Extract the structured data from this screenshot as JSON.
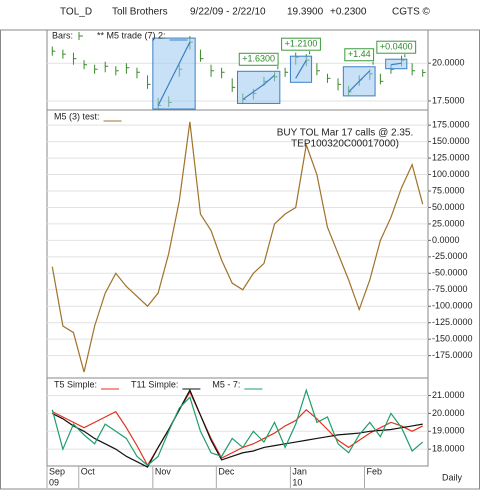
{
  "header": {
    "symbol": "TOL_D",
    "name": "Toll Brothers",
    "range": "9/22/09 - 2/22/10",
    "last": "19.3900",
    "change": "+0.2300",
    "brand": "CGTS ©"
  },
  "chart_data": [
    {
      "type": "ohlc",
      "ylim": [
        16.9,
        22.2
      ],
      "yticks": [
        {
          "value": 20,
          "label": "20.0000"
        },
        {
          "value": 17.5,
          "label": "17.5000"
        }
      ],
      "grid": true,
      "series": [
        {
          "name": "Bars:",
          "color": "#3a8a2a",
          "high": [
            21.1,
            20.9,
            20.7,
            20.2,
            19.9,
            20.1,
            19.8,
            20.0,
            19.7,
            19.2,
            17.7,
            17.8,
            19.9,
            21.8,
            20.9,
            19.9,
            19.7,
            19.0,
            18.0,
            18.3,
            19.1,
            19.4,
            19.7,
            20.7,
            20.6,
            20.0,
            19.3,
            19.0,
            18.5,
            19.2,
            19.6,
            19.3,
            19.9,
            20.5,
            20.0,
            19.6
          ],
          "low": [
            20.5,
            20.3,
            19.9,
            19.6,
            19.3,
            19.4,
            19.2,
            19.3,
            19.0,
            18.3,
            17.0,
            17.1,
            19.1,
            20.9,
            20.1,
            19.1,
            19.0,
            18.1,
            17.3,
            17.6,
            18.5,
            18.8,
            19.1,
            19.9,
            19.8,
            19.2,
            18.7,
            18.2,
            17.8,
            18.5,
            18.9,
            18.6,
            19.3,
            19.8,
            19.2,
            19.1
          ],
          "close": [
            20.8,
            20.6,
            20.3,
            19.9,
            19.6,
            19.8,
            19.5,
            19.7,
            19.4,
            18.6,
            17.2,
            17.4,
            19.6,
            21.4,
            20.3,
            19.5,
            19.4,
            18.4,
            17.6,
            18.0,
            18.8,
            19.1,
            19.4,
            20.4,
            20.2,
            19.5,
            19.0,
            18.6,
            18.1,
            18.9,
            19.3,
            18.8,
            19.6,
            20.2,
            19.5,
            19.39
          ]
        },
        {
          "name": "** M5 trade (7) 2:",
          "color": "#3a7fc8",
          "values": [
            null,
            null,
            null,
            null,
            null,
            null,
            null,
            null,
            null,
            null,
            17.2,
            18.6,
            20.0,
            21.4,
            null,
            null,
            null,
            null,
            17.6,
            18.1,
            18.6,
            19.2,
            null,
            19.0,
            20.2,
            null,
            null,
            null,
            18.1,
            18.8,
            19.5,
            null,
            19.9,
            20.0,
            null,
            null
          ]
        }
      ],
      "trade_labels": [
        null,
        "+1.6300",
        "+1.2100",
        "+1.44",
        "+0.0400"
      ]
    },
    {
      "type": "line",
      "ylim": [
        -209,
        198
      ],
      "grid": true,
      "yticks": [
        {
          "value": 175,
          "label": "175.0000"
        },
        {
          "value": 150,
          "label": "150.0000"
        },
        {
          "value": 125,
          "label": "125.0000"
        },
        {
          "value": 100,
          "label": "100.0000"
        },
        {
          "value": 75,
          "label": "75.0000"
        },
        {
          "value": 50,
          "label": "50.0000"
        },
        {
          "value": 25,
          "label": "25.0000"
        },
        {
          "value": 0,
          "label": "0.0000"
        },
        {
          "value": -25,
          "label": "-25.0000"
        },
        {
          "value": -50,
          "label": "-50.0000"
        },
        {
          "value": -75,
          "label": "-75.0000"
        },
        {
          "value": -100,
          "label": "-100.0000"
        },
        {
          "value": -125,
          "label": "-125.0000"
        },
        {
          "value": -150,
          "label": "-150.0000"
        },
        {
          "value": -175,
          "label": "-175.0000"
        }
      ],
      "annotation": [
        "BUY TOL Mar 17 calls @ 2.35.",
        "TEP100320C00017000)"
      ],
      "series": [
        {
          "name": "M5 (3) test:",
          "color": "#a0722a",
          "values": [
            -40,
            -130,
            -140,
            -200,
            -130,
            -80,
            -50,
            -70,
            -85,
            -100,
            -80,
            -20,
            60,
            180,
            40,
            15,
            -30,
            -65,
            -75,
            -50,
            -35,
            25,
            40,
            50,
            145,
            100,
            20,
            -20,
            -60,
            -105,
            -60,
            0,
            35,
            80,
            115,
            55
          ]
        }
      ]
    },
    {
      "type": "line",
      "ylim": [
        17.06,
        21.98
      ],
      "grid": true,
      "yticks": [
        {
          "value": 21,
          "label": "21.0000"
        },
        {
          "value": 20,
          "label": "20.0000"
        },
        {
          "value": 19,
          "label": "19.0000"
        },
        {
          "value": 18,
          "label": "18.0000"
        }
      ],
      "categories": [
        "Sep",
        null,
        null,
        "Oct",
        null,
        null,
        null,
        null,
        null,
        null,
        "Nov",
        null,
        null,
        null,
        null,
        null,
        "Dec",
        null,
        null,
        null,
        null,
        null,
        null,
        "Jan",
        null,
        null,
        null,
        null,
        null,
        null,
        "Feb",
        null,
        null,
        null,
        null,
        null
      ],
      "category_years": [
        "09",
        null,
        null,
        null,
        null,
        null,
        null,
        null,
        null,
        null,
        null,
        null,
        null,
        null,
        null,
        null,
        null,
        null,
        null,
        null,
        null,
        null,
        null,
        "10",
        null,
        null,
        null,
        null,
        null,
        null,
        null,
        null,
        null,
        null,
        null,
        null
      ],
      "frequency": "Daily",
      "series": [
        {
          "name": "T5 Simple:",
          "color": "#e0321e",
          "values": [
            20.1,
            19.8,
            19.5,
            19.2,
            19.5,
            19.8,
            20.1,
            19.2,
            18.2,
            17.1,
            18.1,
            19.1,
            20.2,
            21.2,
            19.9,
            18.6,
            17.5,
            17.8,
            18.1,
            18.3,
            18.6,
            18.9,
            19.3,
            19.6,
            20.2,
            19.7,
            19.1,
            18.5,
            18.1,
            18.5,
            18.9,
            19.2,
            19.5,
            19.3,
            19.0,
            19.3
          ]
        },
        {
          "name": "T11 Simple:",
          "color": "#111111",
          "values": [
            20.0,
            19.7,
            19.3,
            19.0,
            18.6,
            18.3,
            18.0,
            17.6,
            17.3,
            17.0,
            18.1,
            19.1,
            20.2,
            21.3,
            19.9,
            18.5,
            17.4,
            17.6,
            17.8,
            17.9,
            18.1,
            18.2,
            18.3,
            18.4,
            18.5,
            18.6,
            18.7,
            18.8,
            18.85,
            18.9,
            19.0,
            19.05,
            19.1,
            19.2,
            19.3,
            19.4
          ]
        },
        {
          "name": "M5 - 7:",
          "color": "#1e9e6a",
          "values": [
            20.2,
            18.0,
            19.4,
            18.8,
            18.3,
            19.4,
            19.0,
            18.6,
            17.6,
            17.1,
            17.6,
            19.0,
            20.3,
            20.9,
            19.0,
            17.8,
            17.6,
            18.6,
            18.1,
            19.0,
            18.4,
            19.5,
            18.1,
            19.4,
            21.3,
            19.5,
            19.8,
            18.3,
            17.8,
            18.8,
            19.5,
            18.7,
            20.0,
            19.2,
            17.9,
            18.4
          ]
        }
      ]
    }
  ]
}
